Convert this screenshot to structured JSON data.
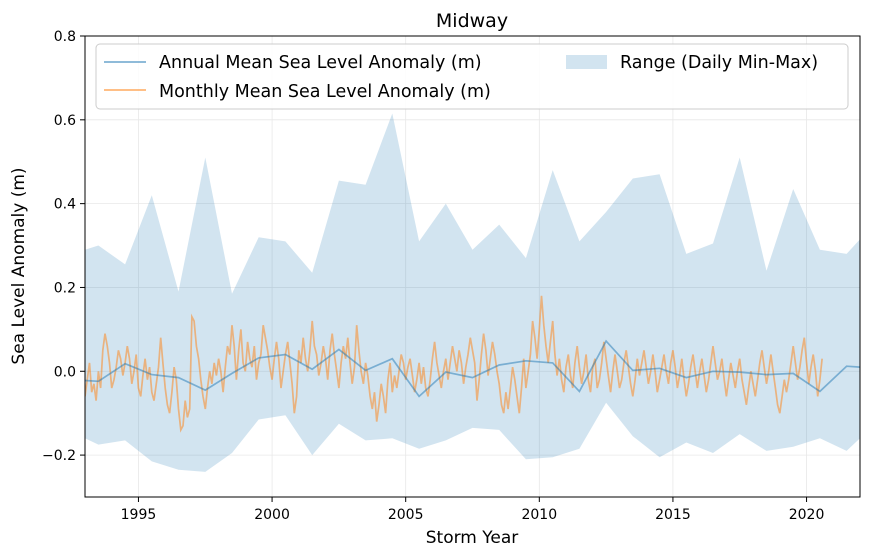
{
  "chart_data": {
    "type": "line",
    "title": "Midway",
    "xlabel": "Storm Year",
    "ylabel": "Sea Level Anomaly (m)",
    "xlim": [
      1993.0,
      2022.0
    ],
    "ylim": [
      -0.3,
      0.8
    ],
    "x_ticks": [
      1995,
      2000,
      2005,
      2010,
      2015,
      2020
    ],
    "x_tick_labels": [
      "1995",
      "2000",
      "2005",
      "2010",
      "2015",
      "2020"
    ],
    "y_ticks": [
      -0.2,
      0.0,
      0.2,
      0.4,
      0.6,
      0.8
    ],
    "y_tick_labels": [
      "−0.2",
      "0.0",
      "0.2",
      "0.4",
      "0.6",
      "0.8"
    ],
    "grid": true,
    "legend_position": "top",
    "colors": {
      "annual": "#1f77b4",
      "monthly": "#ff7f0e",
      "range": "#1f77b4"
    },
    "series": [
      {
        "name": "Annual Mean Sea Level Anomaly (m)",
        "kind": "line",
        "x": [
          1993.0,
          1993.5,
          1994.5,
          1995.5,
          1996.5,
          1997.5,
          1998.5,
          1999.5,
          2000.5,
          2001.5,
          2002.5,
          2003.5,
          2004.5,
          2005.5,
          2006.5,
          2007.5,
          2008.5,
          2009.5,
          2010.5,
          2011.5,
          2012.5,
          2013.5,
          2014.5,
          2015.5,
          2016.5,
          2017.5,
          2018.5,
          2019.5,
          2020.5,
          2021.5,
          2022.0
        ],
        "y": [
          -0.022,
          -0.024,
          0.018,
          -0.008,
          -0.015,
          -0.045,
          -0.005,
          0.032,
          0.04,
          0.005,
          0.052,
          0.002,
          0.03,
          -0.06,
          -0.002,
          -0.015,
          0.015,
          0.025,
          0.02,
          -0.048,
          0.072,
          0.002,
          0.007,
          -0.015,
          0.0,
          -0.002,
          -0.008,
          -0.005,
          -0.048,
          0.012,
          0.01
        ]
      },
      {
        "name": "Monthly Mean Sea Level Anomaly (m)",
        "kind": "line",
        "x_start": 1993.0,
        "x_step": 0.0833333,
        "y": [
          -0.06,
          -0.02,
          0.02,
          -0.05,
          -0.03,
          -0.07,
          0.0,
          -0.04,
          0.05,
          0.09,
          0.06,
          0.02,
          -0.04,
          -0.02,
          0.01,
          0.05,
          0.03,
          -0.01,
          0.02,
          0.06,
          0.03,
          -0.03,
          0.0,
          0.04,
          -0.04,
          -0.06,
          -0.01,
          0.03,
          -0.02,
          0.01,
          -0.05,
          -0.07,
          -0.03,
          0.01,
          0.08,
          0.02,
          -0.04,
          -0.08,
          -0.1,
          -0.05,
          0.01,
          -0.02,
          -0.09,
          -0.14,
          -0.13,
          -0.07,
          -0.11,
          -0.09,
          0.13,
          0.12,
          0.06,
          0.03,
          -0.02,
          -0.06,
          -0.09,
          -0.04,
          0.0,
          -0.03,
          0.02,
          -0.01,
          0.03,
          0.0,
          -0.05,
          0.01,
          0.06,
          0.04,
          0.11,
          0.06,
          -0.02,
          0.05,
          0.1,
          0.02,
          0.0,
          0.07,
          0.03,
          0.01,
          0.06,
          -0.02,
          0.02,
          0.04,
          0.11,
          0.08,
          0.05,
          0.01,
          -0.02,
          0.03,
          0.07,
          0.03,
          -0.04,
          0.0,
          0.04,
          0.07,
          0.02,
          -0.03,
          -0.1,
          -0.06,
          0.05,
          0.02,
          0.08,
          0.03,
          0.0,
          0.05,
          0.12,
          0.06,
          0.04,
          -0.01,
          0.02,
          0.06,
          0.03,
          -0.02,
          0.05,
          0.09,
          0.04,
          0.0,
          -0.04,
          0.02,
          0.06,
          0.03,
          0.08,
          0.02,
          -0.03,
          0.01,
          0.11,
          0.05,
          0.0,
          -0.03,
          0.02,
          -0.01,
          -0.06,
          -0.09,
          -0.05,
          -0.12,
          -0.08,
          -0.03,
          -0.06,
          -0.1,
          -0.02,
          0.02,
          -0.05,
          -0.01,
          -0.04,
          0.0,
          0.04,
          0.02,
          -0.02,
          0.01,
          0.03,
          -0.01,
          -0.05,
          -0.02,
          0.02,
          -0.03,
          0.01,
          -0.04,
          -0.06,
          -0.02,
          0.03,
          0.07,
          0.02,
          -0.01,
          -0.04,
          0.0,
          0.03,
          -0.02,
          0.02,
          0.06,
          0.03,
          0.0,
          0.05,
          0.02,
          -0.03,
          0.01,
          0.04,
          0.08,
          0.05,
          0.02,
          -0.07,
          -0.02,
          0.04,
          0.09,
          0.05,
          -0.01,
          0.03,
          0.07,
          0.04,
          0.0,
          -0.03,
          -0.08,
          -0.1,
          -0.05,
          -0.09,
          -0.04,
          0.01,
          -0.02,
          -0.06,
          -0.1,
          -0.04,
          0.03,
          -0.04,
          0.0,
          0.04,
          0.12,
          0.08,
          0.03,
          0.1,
          0.18,
          0.11,
          0.06,
          0.02,
          0.07,
          0.12,
          0.04,
          -0.01,
          0.03,
          -0.02,
          -0.05,
          0.01,
          0.04,
          -0.01,
          -0.04,
          0.02,
          0.06,
          0.01,
          -0.03,
          0.0,
          0.04,
          -0.02,
          -0.05,
          0.01,
          0.03,
          -0.04,
          -0.02,
          0.02,
          0.07,
          0.03,
          -0.01,
          -0.05,
          0.0,
          0.04,
          0.0,
          -0.04,
          -0.02,
          0.02,
          0.05,
          0.01,
          -0.03,
          -0.06,
          -0.02,
          0.03,
          -0.01,
          0.02,
          0.05,
          0.01,
          -0.03,
          0.0,
          0.04,
          0.0,
          -0.05,
          -0.02,
          0.01,
          0.04,
          0.0,
          -0.03,
          0.02,
          0.05,
          0.01,
          -0.04,
          -0.01,
          0.03,
          -0.02,
          -0.06,
          -0.03,
          0.01,
          0.04,
          0.0,
          -0.04,
          0.0,
          0.03,
          -0.01,
          -0.05,
          -0.02,
          0.02,
          0.06,
          0.02,
          -0.02,
          0.0,
          0.03,
          -0.02,
          -0.06,
          -0.02,
          0.02,
          -0.01,
          -0.04,
          0.0,
          0.03,
          -0.02,
          -0.05,
          -0.08,
          -0.04,
          0.0,
          -0.03,
          -0.06,
          -0.02,
          0.02,
          0.05,
          0.01,
          -0.03,
          0.0,
          0.04,
          0.0,
          -0.04,
          -0.08,
          -0.1,
          -0.06,
          -0.02,
          -0.05,
          -0.02,
          0.02,
          0.06,
          0.02,
          -0.02,
          0.01,
          0.05,
          0.08,
          0.02,
          -0.03,
          0.01,
          0.04,
          0.0,
          -0.06,
          -0.02,
          0.03
        ]
      },
      {
        "name": "Range (Daily Min-Max)",
        "kind": "band",
        "x": [
          1993.0,
          1993.5,
          1994.5,
          1995.5,
          1996.5,
          1997.5,
          1998.5,
          1999.5,
          2000.5,
          2001.5,
          2002.5,
          2003.5,
          2004.5,
          2005.5,
          2006.5,
          2007.5,
          2008.5,
          2009.5,
          2010.5,
          2011.5,
          2012.5,
          2013.5,
          2014.5,
          2015.5,
          2016.5,
          2017.5,
          2018.5,
          2019.5,
          2020.5,
          2021.5,
          2022.0
        ],
        "y_max": [
          0.29,
          0.3,
          0.255,
          0.42,
          0.19,
          0.51,
          0.185,
          0.32,
          0.31,
          0.235,
          0.455,
          0.445,
          0.615,
          0.31,
          0.4,
          0.29,
          0.35,
          0.27,
          0.48,
          0.31,
          0.38,
          0.46,
          0.47,
          0.28,
          0.305,
          0.51,
          0.24,
          0.435,
          0.29,
          0.28,
          0.315
        ],
        "y_min": [
          -0.16,
          -0.175,
          -0.165,
          -0.215,
          -0.235,
          -0.24,
          -0.195,
          -0.115,
          -0.105,
          -0.2,
          -0.125,
          -0.165,
          -0.16,
          -0.185,
          -0.165,
          -0.135,
          -0.14,
          -0.21,
          -0.205,
          -0.185,
          -0.075,
          -0.155,
          -0.205,
          -0.17,
          -0.195,
          -0.15,
          -0.19,
          -0.18,
          -0.16,
          -0.19,
          -0.16
        ]
      }
    ]
  }
}
